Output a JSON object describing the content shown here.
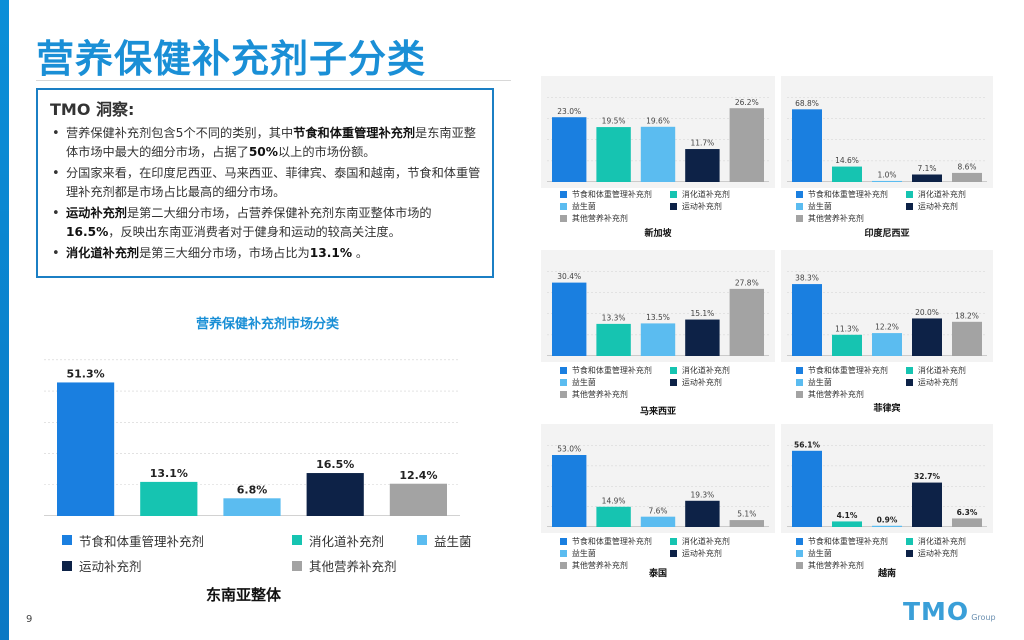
{
  "title": "营养保健补充剂子分类",
  "insight": {
    "heading": "TMO 洞察:",
    "bullets": [
      [
        {
          "t": "营养保健补充剂包含5个不同的类别，其中"
        },
        {
          "t": "节食和体重管理补充剂",
          "b": true
        },
        {
          "t": "是东南亚整体市场中最大的细分市场，占据了"
        },
        {
          "t": "50%",
          "b": true
        },
        {
          "t": "以上的市场份额。"
        }
      ],
      [
        {
          "t": "分国家来看，在印度尼西亚、马来西亚、菲律宾、泰国和越南，节食和体重管理补充剂都是市场占比最高的细分市场。"
        }
      ],
      [
        {
          "t": "运动补充剂",
          "b": true
        },
        {
          "t": "是第二大细分市场，占营养保健补充剂东南亚整体市场的"
        },
        {
          "t": "16.5%",
          "b": true
        },
        {
          "t": "，反映出东南亚消费者对于健身和运动的较高关注度。"
        }
      ],
      [
        {
          "t": "消化道补充剂",
          "b": true
        },
        {
          "t": "是第三大细分市场，市场占比为"
        },
        {
          "t": "13.1%",
          "b": true
        },
        {
          "t": " 。"
        }
      ]
    ]
  },
  "main_chart_title": "营养保健补充剂市场分类",
  "main_chart_subtitle": "东南亚整体",
  "page_number": "9",
  "logo": {
    "text": "TMO",
    "sub": "Group"
  },
  "colors": [
    "#1a7fe0",
    "#16c4b1",
    "#5bbcf0",
    "#0d2247",
    "#a3a3a3"
  ],
  "chart_data": [
    {
      "id": "sea",
      "type": "bar",
      "label": "东南亚整体",
      "categories": [
        "节食和体重管理补充剂",
        "消化道补充剂",
        "益生菌",
        "运动补充剂",
        "其他营养补充剂"
      ],
      "values": [
        51.3,
        13.1,
        6.8,
        16.5,
        12.4
      ],
      "value_labels": [
        "51.3%",
        "13.1%",
        "6.8%",
        "16.5%",
        "12.4%"
      ],
      "ylim": [
        0,
        60
      ]
    },
    {
      "id": "sg",
      "type": "bar",
      "label": "新加坡",
      "categories": [
        "节食和体重管理补充剂",
        "消化道补充剂",
        "益生菌",
        "运动补充剂",
        "其他营养补充剂"
      ],
      "values": [
        23.0,
        19.5,
        19.6,
        11.7,
        26.2
      ],
      "value_labels": [
        "23.0%",
        "19.5%",
        "19.6%",
        "11.7%",
        "26.2%"
      ],
      "ylim": [
        0,
        30
      ]
    },
    {
      "id": "id",
      "type": "bar",
      "label": "印度尼西亚",
      "categories": [
        "节食和体重管理补充剂",
        "消化道补充剂",
        "益生菌",
        "运动补充剂",
        "其他营养补充剂"
      ],
      "values": [
        68.8,
        14.6,
        1.0,
        7.1,
        8.6
      ],
      "value_labels": [
        "68.8%",
        "14.6%",
        "1.0%",
        "7.1%",
        "8.6%"
      ],
      "ylim": [
        0,
        80
      ]
    },
    {
      "id": "my",
      "type": "bar",
      "label": "马来西亚",
      "categories": [
        "节食和体重管理补充剂",
        "消化道补充剂",
        "益生菌",
        "运动补充剂",
        "其他营养补充剂"
      ],
      "values": [
        30.4,
        13.3,
        13.5,
        15.1,
        27.8
      ],
      "value_labels": [
        "30.4%",
        "13.3%",
        "13.5%",
        "15.1%",
        "27.8%"
      ],
      "ylim": [
        0,
        35
      ]
    },
    {
      "id": "ph",
      "type": "bar",
      "label": "菲律宾",
      "categories": [
        "节食和体重管理补充剂",
        "消化道补充剂",
        "益生菌",
        "运动补充剂",
        "其他营养补充剂"
      ],
      "values": [
        38.3,
        11.3,
        12.2,
        20.0,
        18.2
      ],
      "value_labels": [
        "38.3%",
        "11.3%",
        "12.2%",
        "20.0%",
        "18.2%"
      ],
      "ylim": [
        0,
        45
      ]
    },
    {
      "id": "th",
      "type": "bar",
      "label": "泰国",
      "categories": [
        "节食和体重管理补充剂",
        "消化道补充剂",
        "益生菌",
        "运动补充剂",
        "其他营养补充剂"
      ],
      "values": [
        53.0,
        14.9,
        7.6,
        19.3,
        5.1
      ],
      "value_labels": [
        "53.0%",
        "14.9%",
        "7.6%",
        "19.3%",
        "5.1%"
      ],
      "ylim": [
        0,
        60
      ]
    },
    {
      "id": "vn",
      "type": "bar",
      "label": "越南",
      "categories": [
        "节食和体重管理补充剂",
        "消化道补充剂",
        "益生菌",
        "运动补充剂",
        "其他营养补充剂"
      ],
      "values": [
        56.1,
        4.1,
        0.9,
        32.7,
        6.3
      ],
      "value_labels": [
        "56.1%",
        "4.1%",
        "0.9%",
        "32.7%",
        "6.3%"
      ],
      "ylim": [
        0,
        60
      ]
    }
  ]
}
